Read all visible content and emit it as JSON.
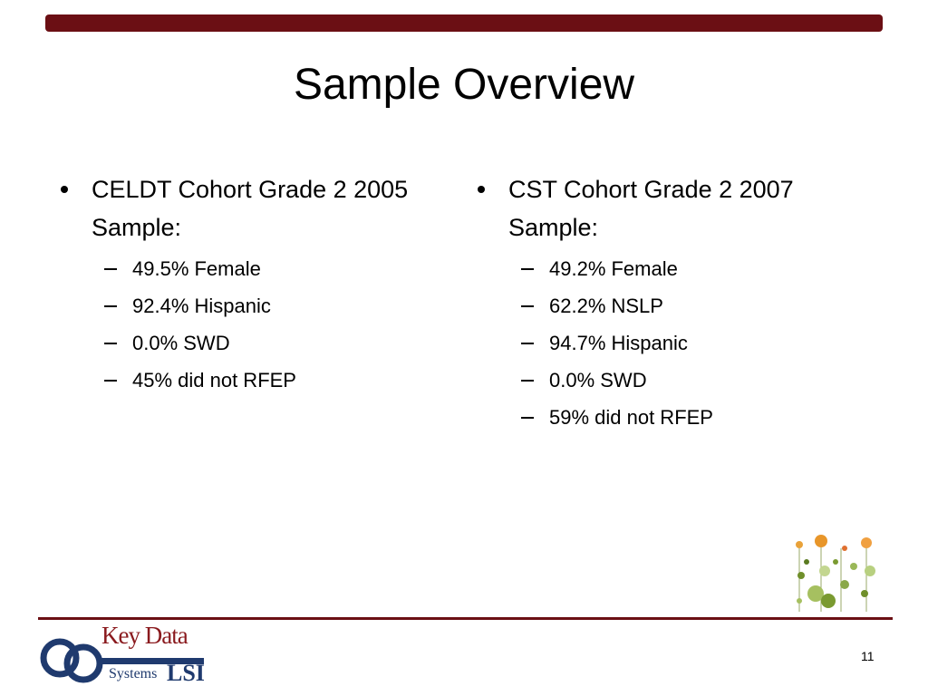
{
  "title": "Sample Overview",
  "columns": [
    {
      "heading": "CELDT Cohort Grade 2 2005 Sample:",
      "items": [
        "49.5% Female",
        "92.4% Hispanic",
        "0.0% SWD",
        "45% did not RFEP"
      ]
    },
    {
      "heading": "CST Cohort Grade 2 2007 Sample:",
      "items": [
        "49.2% Female",
        "62.2% NSLP",
        "94.7% Hispanic",
        "0.0% SWD",
        "59% did not RFEP"
      ]
    }
  ],
  "logo": {
    "name": "Key Data",
    "tagline": "Systems",
    "mark": "LSI"
  },
  "page_number": "11"
}
